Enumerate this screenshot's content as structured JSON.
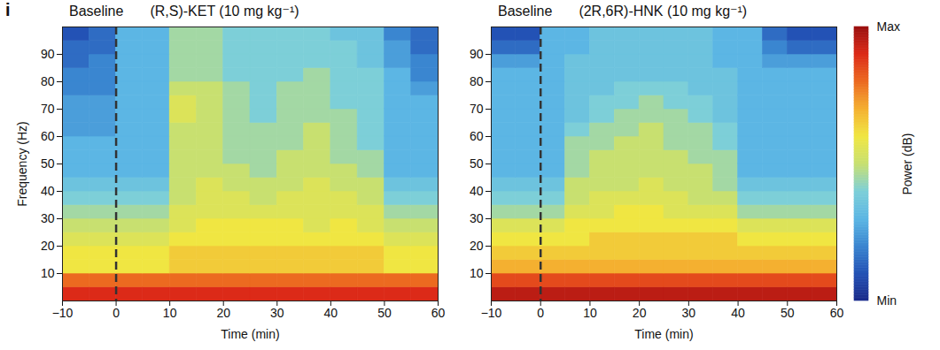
{
  "panel_label": "i",
  "color_bar": {
    "label": "Power (dB)",
    "range": [
      0,
      10
    ],
    "ticks": [
      {
        "value": 0,
        "label": "Min"
      },
      {
        "value": 10,
        "label": "Max"
      }
    ]
  },
  "chart_data": [
    {
      "type": "heatmap",
      "title_left": "Baseline",
      "title": "(R,S)-KET (10 mg kg⁻¹)",
      "x_label": "Time (min)",
      "y_label": "Frequency (Hz)",
      "xlim": [
        -10,
        60
      ],
      "xticks": [
        -10,
        0,
        10,
        20,
        30,
        40,
        50,
        60
      ],
      "ylim": [
        0,
        100
      ],
      "yticks": [
        10,
        20,
        30,
        40,
        50,
        60,
        70,
        80,
        90
      ],
      "marker_x": 0,
      "line_style": "dashed",
      "x_bins": [
        -10,
        -5,
        0,
        5,
        10,
        15,
        20,
        25,
        30,
        35,
        40,
        45,
        50,
        55,
        60
      ],
      "y_bins": [
        0,
        5,
        10,
        15,
        20,
        25,
        30,
        35,
        40,
        45,
        50,
        55,
        60,
        65,
        70,
        75,
        80,
        85,
        90,
        95,
        100
      ],
      "cells": [
        [
          9,
          9,
          9,
          9,
          9,
          9,
          9,
          9,
          9,
          9,
          9,
          9,
          9,
          9
        ],
        [
          8,
          8,
          8,
          8,
          8,
          8,
          8,
          8,
          8,
          8,
          8,
          8,
          8,
          8
        ],
        [
          6,
          6,
          6,
          6,
          6.5,
          6.5,
          6.5,
          6.5,
          6.5,
          6.5,
          6.5,
          6.5,
          6,
          6
        ],
        [
          6,
          6,
          6,
          6,
          6.5,
          6.5,
          6.5,
          6.5,
          6.5,
          6.5,
          6.5,
          6.5,
          6,
          6
        ],
        [
          5.5,
          5.5,
          5.5,
          5.5,
          6,
          6,
          6,
          6,
          6,
          6,
          6,
          6,
          5.5,
          5.5
        ],
        [
          5,
          5,
          5,
          5,
          5.5,
          6,
          6,
          6,
          6,
          5.5,
          6,
          5.5,
          5,
          5
        ],
        [
          4.5,
          4.5,
          4.5,
          4.5,
          5.5,
          5.5,
          5.5,
          5.5,
          5.5,
          5.5,
          5.5,
          5.5,
          4.5,
          4.5
        ],
        [
          4,
          4,
          4,
          4,
          5,
          5.5,
          5.5,
          5,
          5.5,
          5.5,
          5.5,
          5,
          4,
          4
        ],
        [
          3.5,
          3.5,
          3.5,
          3.5,
          5,
          5.5,
          5,
          5,
          5,
          5.5,
          5,
          5,
          3.5,
          3.5
        ],
        [
          3,
          3,
          3,
          3,
          5,
          5,
          5,
          4.5,
          5,
          5,
          5,
          4.5,
          3,
          3
        ],
        [
          3,
          3,
          3,
          3,
          5,
          5,
          4.5,
          4.5,
          5,
          5,
          4.5,
          4.5,
          3,
          3
        ],
        [
          3,
          3,
          3,
          3,
          5,
          5,
          4.5,
          4.5,
          4.5,
          5,
          4.5,
          4,
          3,
          3
        ],
        [
          2.5,
          2.5,
          3,
          3,
          5,
          5,
          4.5,
          4.5,
          4.5,
          5,
          4.5,
          4,
          3,
          3
        ],
        [
          2.5,
          2.5,
          3,
          3,
          5.5,
          5,
          4.5,
          4,
          4.5,
          4.5,
          4.5,
          4,
          3,
          3
        ],
        [
          2.5,
          2.5,
          3,
          3,
          5.5,
          5,
          4.5,
          4,
          4.5,
          4.5,
          4,
          4,
          3,
          3
        ],
        [
          2,
          2,
          3,
          3,
          5,
          5,
          4.5,
          4,
          4.5,
          4.5,
          4,
          4,
          3,
          2.5
        ],
        [
          2,
          2,
          3,
          3,
          4.5,
          4.5,
          4,
          4,
          4,
          4.5,
          4,
          4,
          3,
          2
        ],
        [
          1.5,
          2,
          3,
          3,
          4.5,
          4.5,
          4,
          4,
          4,
          4,
          4,
          3.5,
          2.5,
          2
        ],
        [
          1.5,
          1.5,
          3,
          3,
          4.5,
          4.5,
          4,
          4,
          4,
          4,
          4,
          3.5,
          2.5,
          1.5
        ],
        [
          1,
          1.5,
          3,
          3,
          4.5,
          4.5,
          4,
          4,
          4,
          4,
          3.5,
          3.5,
          2,
          1.5
        ]
      ]
    },
    {
      "type": "heatmap",
      "title_left": "Baseline",
      "title": "(2R,6R)-HNK (10 mg kg⁻¹)",
      "x_label": "Time (min)",
      "xlim": [
        -10,
        60
      ],
      "xticks": [
        -10,
        0,
        10,
        20,
        30,
        40,
        50,
        60
      ],
      "ylim": [
        0,
        100
      ],
      "yticks": [
        10,
        20,
        30,
        40,
        50,
        60,
        70,
        80,
        90
      ],
      "marker_x": 0,
      "line_style": "dashed",
      "x_bins": [
        -10,
        -5,
        0,
        5,
        10,
        15,
        20,
        25,
        30,
        35,
        40,
        45,
        50,
        55,
        60
      ],
      "y_bins": [
        0,
        5,
        10,
        15,
        20,
        25,
        30,
        35,
        40,
        45,
        50,
        55,
        60,
        65,
        70,
        75,
        80,
        85,
        90,
        95,
        100
      ],
      "cells": [
        [
          9.5,
          9.5,
          9.5,
          9.5,
          9.5,
          9.5,
          9.5,
          9.5,
          9.5,
          9.5,
          9.5,
          9.5,
          9.5,
          9.5
        ],
        [
          8.5,
          8.5,
          8.5,
          8.5,
          8.5,
          8.5,
          8.5,
          8.5,
          8.5,
          8.5,
          8.5,
          8.5,
          8.5,
          8.5
        ],
        [
          7,
          7,
          7,
          7,
          7,
          7,
          7,
          7,
          7,
          7,
          7,
          7,
          7,
          7
        ],
        [
          6.5,
          6.5,
          6.5,
          6.5,
          6.5,
          6.5,
          6.5,
          6.5,
          6.5,
          6.5,
          6.5,
          6.5,
          6.5,
          6.5
        ],
        [
          6,
          6,
          6,
          6,
          6.5,
          6.5,
          6.5,
          6.5,
          6.5,
          6.5,
          6,
          6,
          6,
          6
        ],
        [
          5.5,
          5.5,
          5.5,
          6,
          6,
          6,
          6,
          6,
          6,
          6,
          5.5,
          5.5,
          5.5,
          5.5
        ],
        [
          4.5,
          4.5,
          4.5,
          5.5,
          5.5,
          6,
          6,
          5.5,
          5.5,
          5.5,
          4.5,
          4.5,
          4.5,
          4.5
        ],
        [
          4,
          4,
          4,
          5,
          5.5,
          5.5,
          5.5,
          5.5,
          5,
          5,
          4,
          4,
          4,
          4
        ],
        [
          3.5,
          3.5,
          3.5,
          5,
          5,
          5,
          5.5,
          5,
          5,
          4.5,
          3.5,
          3.5,
          3.5,
          3.5
        ],
        [
          3,
          3,
          3,
          4.5,
          5,
          5,
          5,
          5,
          5,
          4.5,
          3,
          3,
          3,
          3
        ],
        [
          3,
          3,
          3,
          4.5,
          5,
          5,
          5,
          5,
          4.5,
          4.5,
          3,
          3,
          3,
          3
        ],
        [
          3,
          3,
          3,
          4.5,
          4.5,
          5,
          5,
          4.5,
          4.5,
          4,
          3,
          3,
          3,
          3
        ],
        [
          3,
          3,
          3,
          4,
          4.5,
          4.5,
          5,
          4.5,
          4.5,
          4,
          3,
          3,
          3,
          3
        ],
        [
          3,
          3,
          3,
          3.5,
          4,
          4.5,
          4.5,
          4.5,
          4,
          3.5,
          3,
          3,
          3,
          3
        ],
        [
          3,
          3,
          3,
          3.5,
          4,
          4,
          4.5,
          4,
          4,
          3.5,
          3,
          3,
          3,
          3
        ],
        [
          3,
          3,
          3,
          3.5,
          3.5,
          4,
          4,
          4,
          3.5,
          3.5,
          3,
          3,
          3,
          3
        ],
        [
          3,
          3,
          3,
          3.5,
          3.5,
          3.5,
          3.5,
          3.5,
          3.5,
          3.5,
          3,
          3,
          3,
          3
        ],
        [
          2.5,
          2.5,
          3,
          3.5,
          3.5,
          3.5,
          3.5,
          3.5,
          3.5,
          3,
          3,
          2.5,
          2.5,
          2.5
        ],
        [
          1.5,
          1.5,
          3,
          3,
          3.5,
          3.5,
          3.5,
          3.5,
          3.5,
          3,
          3,
          2,
          1.5,
          1.5
        ],
        [
          1,
          1,
          3,
          3,
          3.5,
          3.5,
          3.5,
          3.5,
          3.5,
          3,
          3,
          1.5,
          1,
          1
        ]
      ]
    }
  ]
}
